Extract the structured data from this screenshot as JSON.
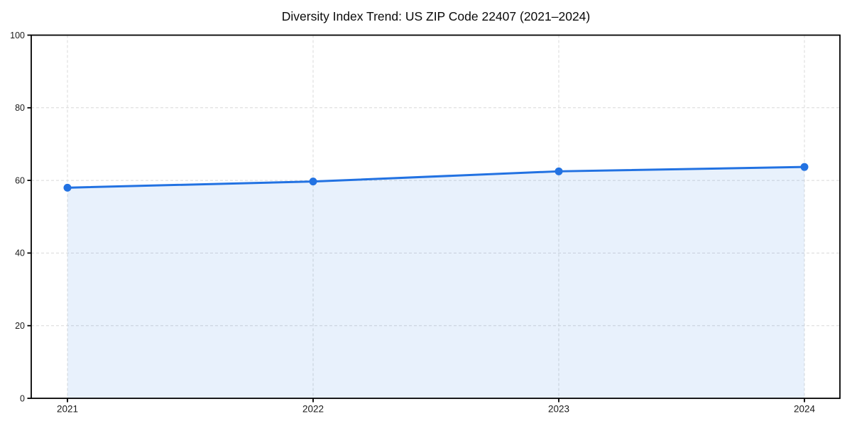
{
  "chart_data": {
    "type": "line",
    "style": "area-line-with-markers",
    "title": "Diversity Index Trend: US ZIP Code 22407 (2021–2024)",
    "categories": [
      "2021",
      "2022",
      "2023",
      "2024"
    ],
    "values": [
      58.0,
      59.7,
      62.5,
      63.7
    ],
    "xlabel": "",
    "ylabel": "",
    "ylim": [
      0,
      100
    ],
    "yticks": [
      0,
      20,
      40,
      60,
      80,
      100
    ],
    "grid": "dashed both axes",
    "legend": "none",
    "colors": {
      "line": "#2272e2",
      "marker": "#2272e2",
      "fill": "#2272e2",
      "fill_opacity": 0.1,
      "grid": "#d9d9d9",
      "axis": "#000000",
      "title": "#0a0a0a",
      "tick_label": "#1a1a1a",
      "background": "#ffffff"
    }
  }
}
